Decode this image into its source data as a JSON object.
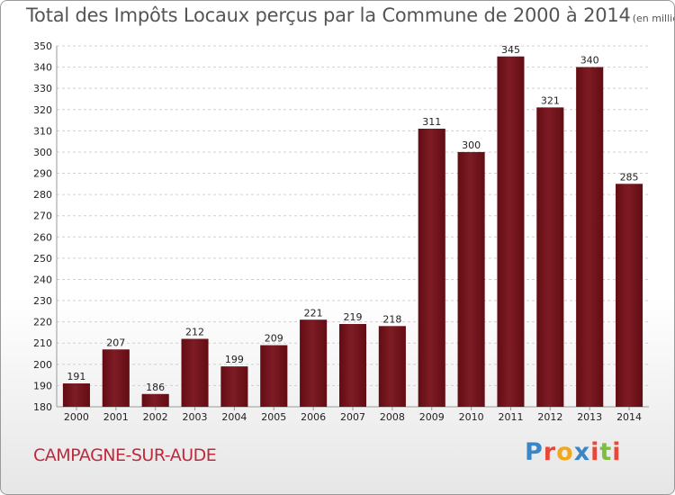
{
  "chart_data": {
    "type": "bar",
    "title": "Total des Impôts Locaux perçus par la Commune de 2000 à 2014",
    "subtitle": "(en milliers d'€)",
    "categories": [
      "2000",
      "2001",
      "2002",
      "2003",
      "2004",
      "2005",
      "2006",
      "2007",
      "2008",
      "2009",
      "2010",
      "2011",
      "2012",
      "2013",
      "2014"
    ],
    "values": [
      191,
      207,
      186,
      212,
      199,
      209,
      221,
      219,
      218,
      311,
      300,
      345,
      321,
      340,
      285
    ],
    "ylim": [
      180,
      350
    ],
    "yticks": [
      180,
      190,
      200,
      210,
      220,
      230,
      240,
      250,
      260,
      270,
      280,
      290,
      300,
      310,
      320,
      330,
      340,
      350
    ],
    "grid": true,
    "bar_color": "#6e0f17",
    "xlabel": "",
    "ylabel": ""
  },
  "footer": {
    "commune": "CAMPAGNE-SUR-AUDE",
    "commune_color": "#c0283d"
  },
  "logo": {
    "letters": [
      "P",
      "r",
      "o",
      "x",
      "i",
      "t",
      "i"
    ],
    "colors": [
      "#3d86c6",
      "#e8473a",
      "#f2a81e",
      "#3d86c6",
      "#e8473a",
      "#7bbf3a",
      "#e8473a"
    ]
  }
}
